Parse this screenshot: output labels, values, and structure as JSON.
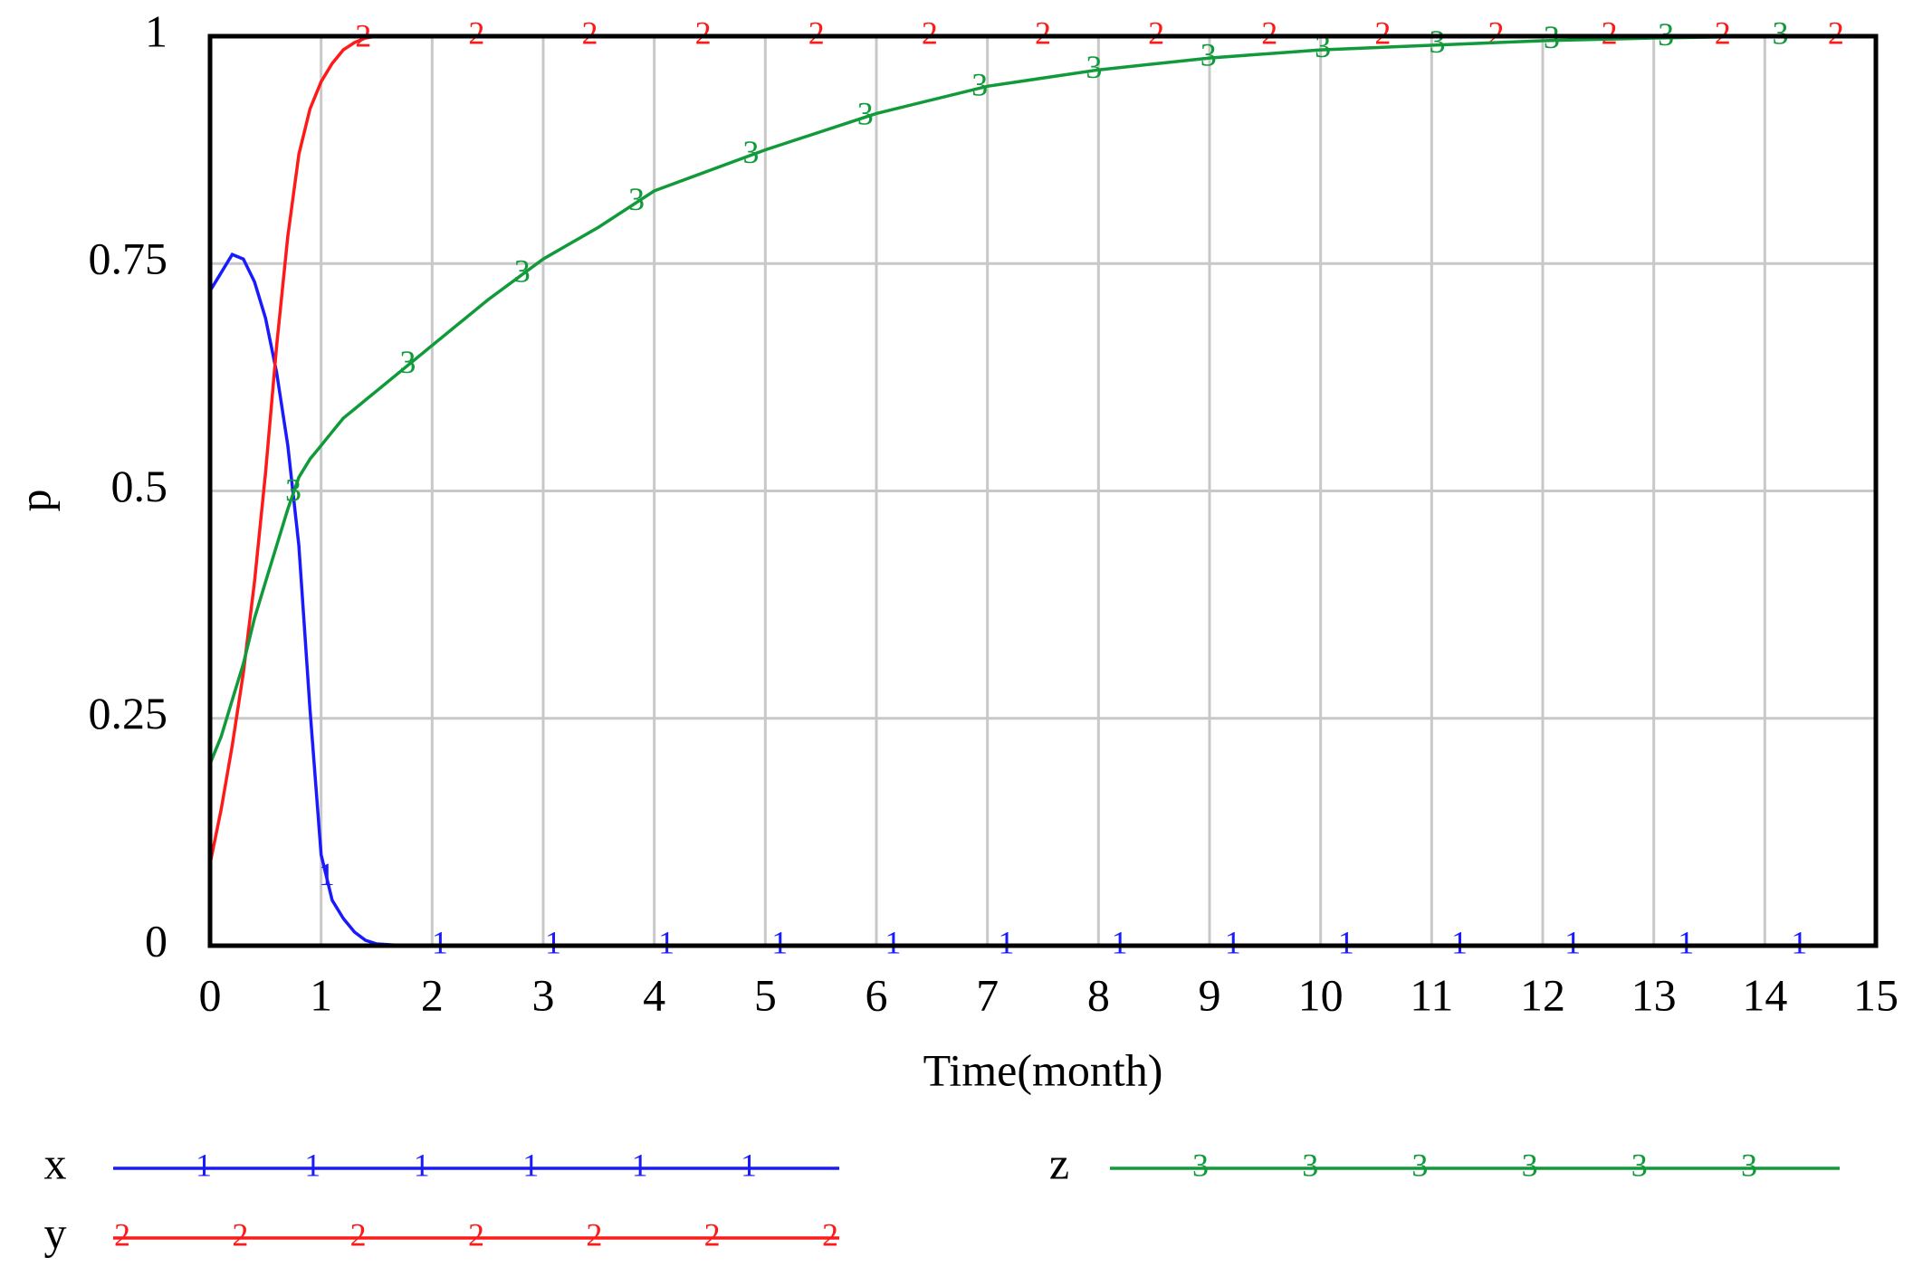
{
  "chart_data": {
    "type": "line",
    "x_label": "Time(month)",
    "y_label": "p",
    "x": [
      0,
      0.1,
      0.2,
      0.3,
      0.4,
      0.5,
      0.6,
      0.7,
      0.8,
      0.9,
      1,
      1.1,
      1.2,
      1.3,
      1.4,
      1.5,
      1.75,
      2,
      2.5,
      3,
      3.5,
      4,
      5,
      6,
      7,
      8,
      9,
      10,
      11,
      12,
      13,
      14,
      15
    ],
    "series": [
      {
        "name": "x",
        "marker": "1",
        "color": "#1a1aff",
        "values": [
          0.72,
          0.74,
          0.76,
          0.755,
          0.73,
          0.69,
          0.63,
          0.55,
          0.44,
          0.26,
          0.1,
          0.05,
          0.03,
          0.015,
          0.006,
          0.002,
          0,
          0,
          0,
          0,
          0,
          0,
          0,
          0,
          0,
          0,
          0,
          0,
          0,
          0,
          0,
          0,
          0
        ]
      },
      {
        "name": "y",
        "marker": "2",
        "color": "#ff1a1a",
        "values": [
          0.09,
          0.15,
          0.22,
          0.3,
          0.4,
          0.52,
          0.66,
          0.78,
          0.87,
          0.92,
          0.95,
          0.97,
          0.985,
          0.993,
          0.998,
          1,
          1,
          1,
          1,
          1,
          1,
          1,
          1,
          1,
          1,
          1,
          1,
          1,
          1,
          1,
          1,
          1,
          1
        ]
      },
      {
        "name": "z",
        "marker": "3",
        "color": "#109a3a",
        "values": [
          0.2,
          0.23,
          0.27,
          0.31,
          0.36,
          0.4,
          0.44,
          0.48,
          0.515,
          0.535,
          0.55,
          0.565,
          0.58,
          0.59,
          0.6,
          0.61,
          0.635,
          0.66,
          0.71,
          0.755,
          0.79,
          0.83,
          0.875,
          0.915,
          0.945,
          0.963,
          0.976,
          0.985,
          0.99,
          0.995,
          0.998,
          1,
          1
        ]
      }
    ],
    "xlim": [
      0,
      15
    ],
    "xticks": [
      0,
      1,
      2,
      3,
      4,
      5,
      6,
      7,
      8,
      9,
      10,
      11,
      12,
      13,
      14,
      15
    ],
    "ylim": [
      0,
      1
    ],
    "yticks": [
      0,
      0.25,
      0.5,
      0.75,
      1
    ],
    "grid": true
  }
}
